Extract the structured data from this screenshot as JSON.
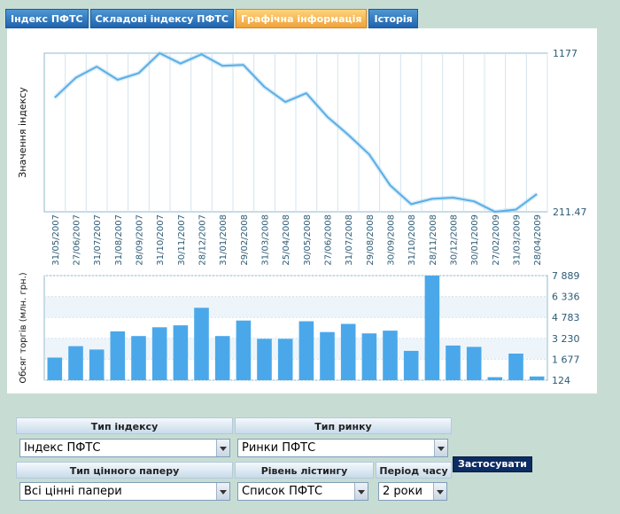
{
  "tabs": [
    {
      "label": "Індекс ПФТС",
      "active": false
    },
    {
      "label": "Складові індексу ПФТС",
      "active": false
    },
    {
      "label": "Графічна інформація",
      "active": true
    },
    {
      "label": "Історія",
      "active": false
    }
  ],
  "colors": {
    "line": "#5aaee6",
    "bar": "#4aa8ea",
    "grid": "#d3e4ee",
    "label": "#2b5a75"
  },
  "chart_data": [
    {
      "type": "line",
      "ylabel": "Значення індексу",
      "y_tick_labels": [
        "1177",
        "211.47"
      ],
      "ylim": [
        211.47,
        1177
      ],
      "x": [
        "31/05/2007",
        "27/06/2007",
        "31/07/2007",
        "31/08/2007",
        "28/09/2007",
        "31/10/2007",
        "30/11/2007",
        "28/12/2007",
        "31/01/2008",
        "29/02/2008",
        "31/03/2008",
        "25/04/2008",
        "30/05/2008",
        "27/06/2008",
        "31/07/2008",
        "29/08/2008",
        "30/09/2008",
        "31/10/2008",
        "28/11/2008",
        "30/12/2008",
        "30/01/2009",
        "27/02/2009",
        "31/03/2009",
        "28/04/2009"
      ],
      "values": [
        906,
        1027,
        1095,
        1015,
        1055,
        1177,
        1114,
        1170,
        1100,
        1105,
        972,
        880,
        933,
        790,
        680,
        561,
        373,
        258,
        290,
        298,
        275,
        211.47,
        225,
        320
      ]
    },
    {
      "type": "bar",
      "ylabel": "Обсяг торгів (млн. грн.)",
      "y_tick_labels": [
        "7 889",
        "6 336",
        "4 783",
        "3 230",
        "1 677",
        "124"
      ],
      "ylim": [
        124,
        7889
      ],
      "x": [
        "31/05/2007",
        "27/06/2007",
        "31/07/2007",
        "31/08/2007",
        "28/09/2007",
        "31/10/2007",
        "30/11/2007",
        "28/12/2007",
        "31/01/2008",
        "29/02/2008",
        "31/03/2008",
        "25/04/2008",
        "30/05/2008",
        "27/06/2008",
        "31/07/2008",
        "29/08/2008",
        "30/09/2008",
        "31/10/2008",
        "28/11/2008",
        "30/12/2008",
        "30/01/2009",
        "27/02/2009",
        "31/03/2009",
        "28/04/2009"
      ],
      "values": [
        1800,
        2650,
        2400,
        3750,
        3400,
        4050,
        4200,
        5500,
        3400,
        4550,
        3200,
        3200,
        4500,
        3700,
        4300,
        3600,
        3800,
        2300,
        7889,
        2700,
        2600,
        350,
        2100,
        400
      ]
    }
  ],
  "form": {
    "index_type_label": "Тип індексу",
    "index_type_value": "Індекс ПФТС",
    "market_type_label": "Тип ринку",
    "market_type_value": "Ринки ПФТС",
    "security_type_label": "Тип цінного паперу",
    "security_type_value": "Всі цінні папери",
    "listing_level_label": "Рівень лістингу",
    "listing_level_value": "Список ПФТС",
    "period_label": "Період часу",
    "period_value": "2 роки",
    "apply_label": "Застосувати"
  }
}
